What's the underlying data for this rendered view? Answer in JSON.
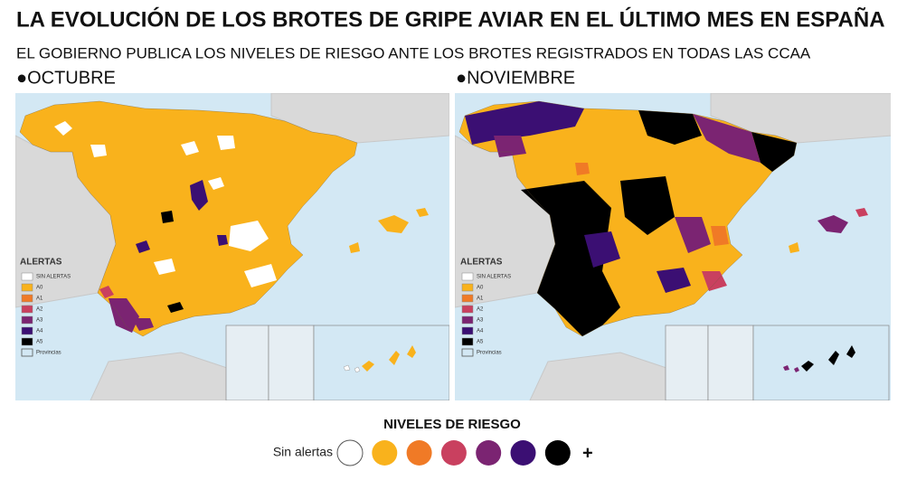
{
  "header": {
    "title": "LA EVOLUCIÓN DE LOS BROTES DE GRIPE AVIAR EN EL ÚLTIMO MES EN ESPAÑA",
    "subtitle": "EL GOBIERNO PUBLICA LOS NIVELES DE RIESGO ANTE LOS BROTES REGISTRADOS EN TODAS LAS CCAA"
  },
  "maps": [
    {
      "label": "●OCTUBRE"
    },
    {
      "label": "●NOVIEMBRE"
    }
  ],
  "map_legend": {
    "title": "ALERTAS",
    "items": [
      "SIN ALERTAS",
      "A0",
      "A1",
      "A2",
      "A3",
      "A4",
      "A5"
    ],
    "provinces": "Provincias"
  },
  "legend": {
    "title": "NIVELES DE RIESGO",
    "none_label": "Sin alertas",
    "more": "+",
    "colors": [
      "#ffffff",
      "#f9b21c",
      "#f07a26",
      "#c9405f",
      "#7b2472",
      "#3b0f73",
      "#000000"
    ]
  }
}
